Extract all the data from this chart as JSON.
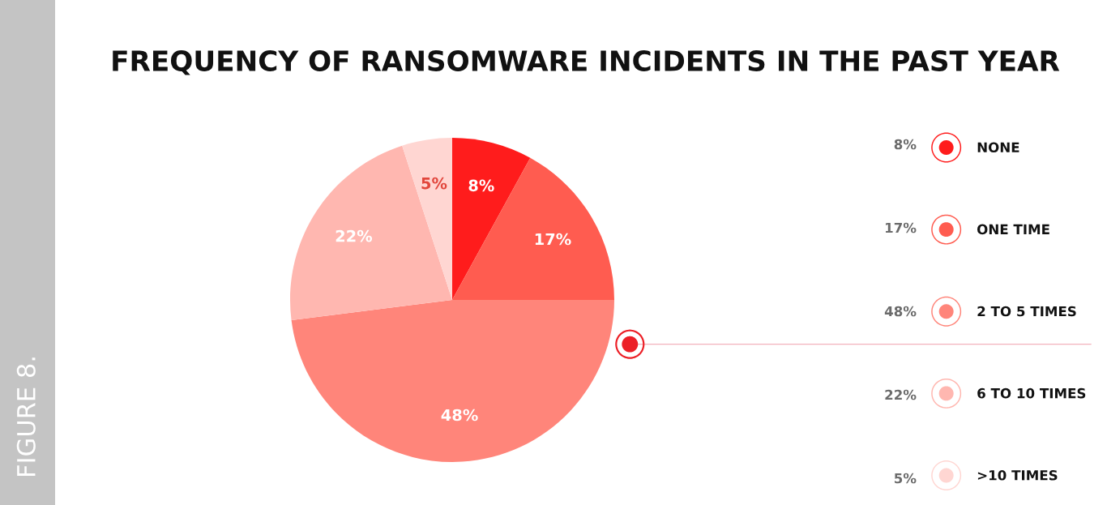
{
  "chart_data": {
    "type": "pie",
    "title": "FREQUENCY OF RANSOMWARE INCIDENTS IN THE PAST YEAR",
    "categories": [
      "NONE",
      "ONE TIME",
      "2 TO 5 TIMES",
      "6 TO 10 TIMES",
      ">10 TIMES"
    ],
    "values": [
      8,
      17,
      48,
      22,
      5
    ],
    "colors": [
      "#ff1c1c",
      "#ff5c50",
      "#ff857a",
      "#ffb7b0",
      "#ffd6d2"
    ],
    "value_labels": [
      "8%",
      "17%",
      "48%",
      "22%",
      "5%"
    ],
    "legend": "right",
    "annotations": [
      "FIGURE 8."
    ]
  }
}
